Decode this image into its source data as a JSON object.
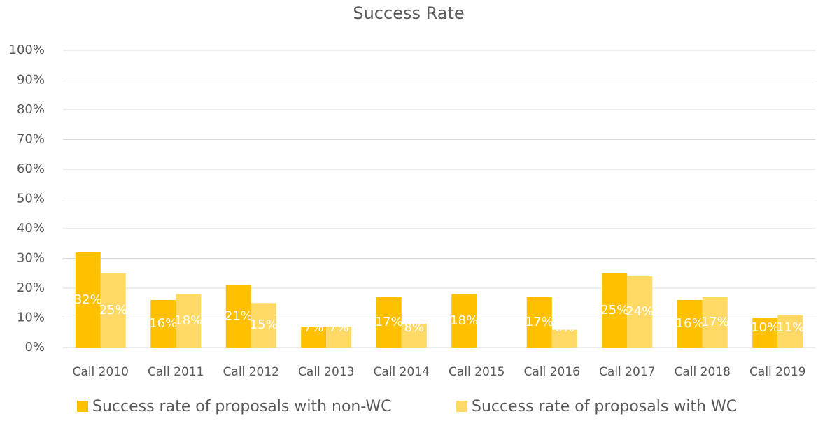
{
  "chart_data": {
    "type": "bar",
    "title": "Success Rate",
    "categories": [
      "Call 2010",
      "Call 2011",
      "Call 2012",
      "Call 2013",
      "Call 2014",
      "Call 2015",
      "Call 2016",
      "Call 2017",
      "Call 2018",
      "Call 2019"
    ],
    "series": [
      {
        "name": "Success rate of proposals with non-WC",
        "color": "#FFC000",
        "values": [
          32,
          16,
          21,
          7,
          17,
          18,
          17,
          25,
          16,
          10
        ],
        "value_labels": [
          "32%",
          "16%",
          "21%",
          "7%",
          "17%",
          "18%",
          "17%",
          "25%",
          "16%",
          "10%"
        ]
      },
      {
        "name": "Success rate of proposals with WC",
        "color": "#FFD966",
        "values": [
          25,
          18,
          15,
          7,
          8,
          null,
          6,
          24,
          17,
          11
        ],
        "value_labels": [
          "25%",
          "18%",
          "15%",
          "7%",
          "8%",
          null,
          "6%",
          "24%",
          "17%",
          "11%"
        ]
      }
    ],
    "ylim": [
      0,
      100
    ],
    "yticks": [
      {
        "value": 0,
        "label": "0%"
      },
      {
        "value": 10,
        "label": "10%"
      },
      {
        "value": 20,
        "label": "20%"
      },
      {
        "value": 30,
        "label": "30%"
      },
      {
        "value": 40,
        "label": "40%"
      },
      {
        "value": 50,
        "label": "50%"
      },
      {
        "value": 60,
        "label": "60%"
      },
      {
        "value": 70,
        "label": "70%"
      },
      {
        "value": 80,
        "label": "80%"
      },
      {
        "value": 90,
        "label": "90%"
      },
      {
        "value": 100,
        "label": "100%"
      }
    ],
    "grid": true,
    "legend": "bottom"
  }
}
